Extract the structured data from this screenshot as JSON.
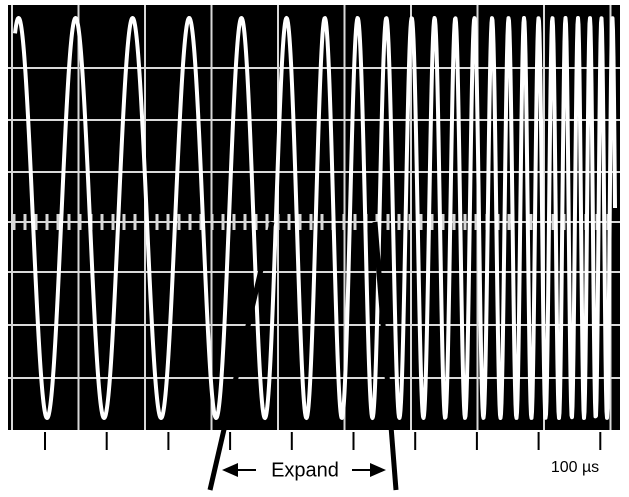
{
  "annotations": {
    "expand": "Expand",
    "timebase": "100 µs"
  }
}
